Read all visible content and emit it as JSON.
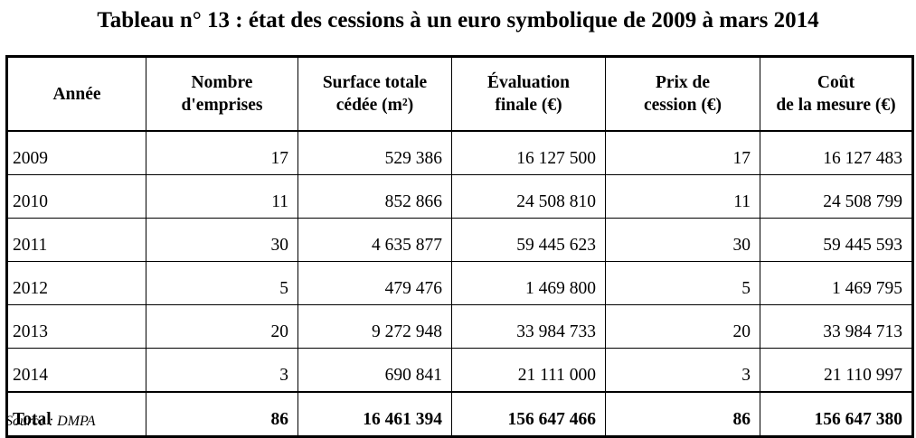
{
  "title": "Tableau n° 13 : état des cessions à un euro symbolique de 2009 à mars 2014",
  "table": {
    "headers": [
      {
        "line1": "Année",
        "line2": ""
      },
      {
        "line1": "Nombre",
        "line2": "d'emprises"
      },
      {
        "line1": "Surface totale",
        "line2": "cédée (m²)"
      },
      {
        "line1": "Évaluation",
        "line2": "finale (€)"
      },
      {
        "line1": "Prix de",
        "line2": "cession (€)"
      },
      {
        "line1": "Coût",
        "line2": "de la mesure (€)"
      }
    ],
    "rows": [
      [
        "2009",
        "17",
        "529 386",
        "16 127 500",
        "17",
        "16 127 483"
      ],
      [
        "2010",
        "11",
        "852 866",
        "24 508 810",
        "11",
        "24 508 799"
      ],
      [
        "2011",
        "30",
        "4 635 877",
        "59 445 623",
        "30",
        "59 445 593"
      ],
      [
        "2012",
        "5",
        "479 476",
        "1 469 800",
        "5",
        "1 469 795"
      ],
      [
        "2013",
        "20",
        "9 272 948",
        "33 984 733",
        "20",
        "33 984 713"
      ],
      [
        "2014",
        "3",
        "690 841",
        "21 111 000",
        "3",
        "21 110 997"
      ]
    ],
    "total": [
      "Total",
      "86",
      "16 461 394",
      "156 647 466",
      "86",
      "156 647 380"
    ]
  },
  "source": "Source : DMPA"
}
